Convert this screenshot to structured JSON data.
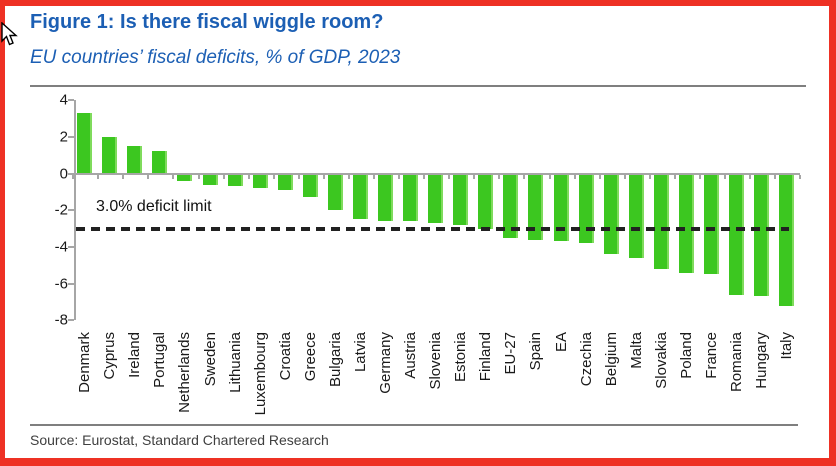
{
  "figure": {
    "title": "Figure 1: Is there fiscal wiggle room?",
    "subtitle": "EU countries’ fiscal deficits, % of GDP, 2023",
    "source": "Source: Eurostat, Standard Chartered Research"
  },
  "icons": {
    "cursor": "mouse-cursor-icon"
  },
  "colors": {
    "frame_red": "#EE3124",
    "heading_blue": "#1C5FB4",
    "bar_green": "#3CC720",
    "bar_green_edge": "#7FDB5C",
    "axis_grey": "#A6A6A6",
    "rule_grey": "#7F7F7F",
    "dash_black": "#212121"
  },
  "chart_data": {
    "type": "bar",
    "title": "Figure 1: Is there fiscal wiggle room?",
    "subtitle": "EU countries’ fiscal deficits, % of GDP, 2023",
    "xlabel": "",
    "ylabel": "% of GDP",
    "ylim": [
      -8,
      4
    ],
    "yticks": [
      4,
      2,
      0,
      -2,
      -4,
      -6,
      -8
    ],
    "grid": false,
    "legend": false,
    "reference_line": {
      "value": -3.0,
      "style": "dashed",
      "label": "3.0% deficit limit"
    },
    "categories": [
      "Denmark",
      "Cyprus",
      "Ireland",
      "Portugal",
      "Netherlands",
      "Sweden",
      "Lithuania",
      "Luxembourg",
      "Croatia",
      "Greece",
      "Bulgaria",
      "Latvia",
      "Germany",
      "Austria",
      "Slovenia",
      "Estonia",
      "Finland",
      "EU-27",
      "Spain",
      "EA",
      "Czechia",
      "Belgium",
      "Malta",
      "Slovakia",
      "Poland",
      "France",
      "Romania",
      "Hungary",
      "Italy"
    ],
    "values": [
      3.3,
      2.0,
      1.5,
      1.2,
      -0.4,
      -0.6,
      -0.7,
      -0.8,
      -0.9,
      -1.3,
      -2.0,
      -2.5,
      -2.6,
      -2.6,
      -2.7,
      -2.8,
      -3.0,
      -3.5,
      -3.6,
      -3.7,
      -3.8,
      -4.4,
      -4.6,
      -5.2,
      -5.4,
      -5.5,
      -6.6,
      -6.7,
      -7.2
    ]
  }
}
